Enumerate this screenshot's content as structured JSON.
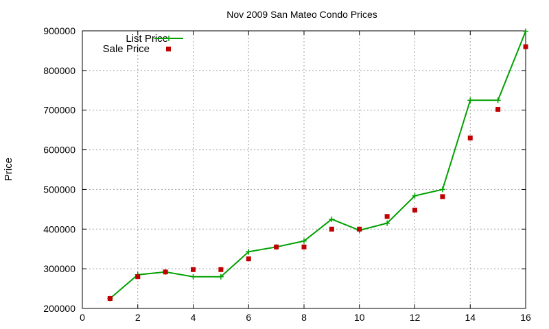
{
  "chart_data": {
    "type": "line",
    "title": "Nov 2009 San Mateo Condo Prices",
    "xlabel": "",
    "ylabel": "Price",
    "xlim": [
      0,
      16
    ],
    "ylim": [
      200000,
      900000
    ],
    "xticks": [
      0,
      2,
      4,
      6,
      8,
      10,
      12,
      14,
      16
    ],
    "yticks": [
      200000,
      300000,
      400000,
      500000,
      600000,
      700000,
      800000,
      900000
    ],
    "grid": true,
    "legend_position": "top-left",
    "series": [
      {
        "name": "List Price",
        "style": "line-plus",
        "color": "#00a000",
        "x": [
          1,
          2,
          3,
          4,
          5,
          6,
          7,
          8,
          9,
          10,
          11,
          12,
          13,
          14,
          15,
          16
        ],
        "values": [
          225000,
          285000,
          292000,
          280000,
          280000,
          343000,
          355000,
          370000,
          425000,
          397000,
          415000,
          484000,
          500000,
          725000,
          725000,
          899000
        ]
      },
      {
        "name": "Sale Price",
        "style": "square",
        "color": "#c00000",
        "x": [
          1,
          2,
          3,
          4,
          5,
          6,
          7,
          8,
          9,
          10,
          11,
          12,
          13,
          14,
          15,
          16
        ],
        "values": [
          225000,
          280000,
          292000,
          298000,
          298000,
          325000,
          355000,
          355000,
          400000,
          400000,
          432000,
          448000,
          482000,
          630000,
          702000,
          860000
        ]
      }
    ]
  }
}
